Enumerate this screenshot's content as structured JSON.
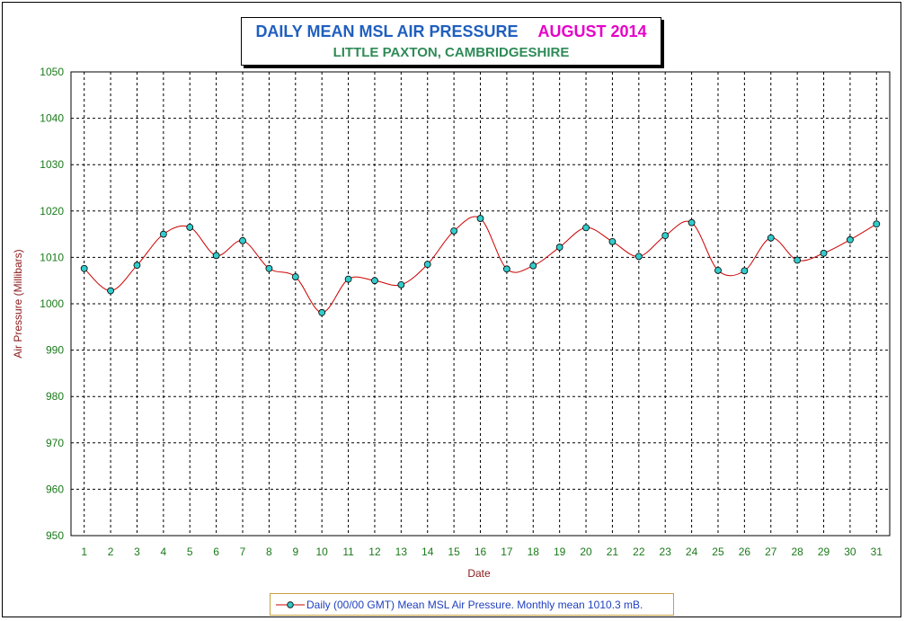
{
  "title": "DAILY MEAN MSL AIR PRESSURE",
  "title_period": "AUGUST 2014",
  "subtitle": "LITTLE PAXTON, CAMBRIDGESHIRE",
  "colors": {
    "line": "#cc0000",
    "marker_fill": "#33cccc",
    "grid": "#000000",
    "tick_labels": "#1a7a1a",
    "axis_titles": "#8b1a1a"
  },
  "chart_data": {
    "type": "line",
    "title": "DAILY MEAN MSL AIR PRESSURE   AUGUST 2014",
    "subtitle": "LITTLE PAXTON, CAMBRIDGESHIRE",
    "xlabel": "Date",
    "ylabel": "Air Pressure (Millibars)",
    "ylim": [
      950,
      1050
    ],
    "yticks": [
      950,
      960,
      970,
      980,
      990,
      1000,
      1010,
      1020,
      1030,
      1040,
      1050
    ],
    "grid": true,
    "legend_position": "bottom-center",
    "x": [
      1,
      2,
      3,
      4,
      5,
      6,
      7,
      8,
      9,
      10,
      11,
      12,
      13,
      14,
      15,
      16,
      17,
      18,
      19,
      20,
      21,
      22,
      23,
      24,
      25,
      26,
      27,
      28,
      29,
      30,
      31
    ],
    "x_tick_labels": [
      "1",
      "2",
      "3",
      "4",
      "5",
      "6",
      "7",
      "8",
      "9",
      "10",
      "11",
      "12",
      "13",
      "14",
      "15",
      "16",
      "17",
      "18",
      "19",
      "20",
      "21",
      "22",
      "23",
      "24",
      "25",
      "26",
      "27",
      "28",
      "29",
      "30",
      "31"
    ],
    "series": [
      {
        "name": "Daily (00/00 GMT) Mean MSL Air Pressure. Monthly mean 1010.3 mB.",
        "values": [
          1007.6,
          1002.8,
          1008.3,
          1015.0,
          1016.5,
          1010.4,
          1013.6,
          1007.6,
          1005.8,
          998.1,
          1005.3,
          1005.0,
          1004.1,
          1008.5,
          1015.7,
          1018.4,
          1007.5,
          1008.2,
          1012.2,
          1016.4,
          1013.4,
          1010.2,
          1014.7,
          1017.5,
          1007.2,
          1007.1,
          1014.2,
          1009.4,
          1010.9,
          1013.8,
          1017.2
        ]
      }
    ]
  }
}
